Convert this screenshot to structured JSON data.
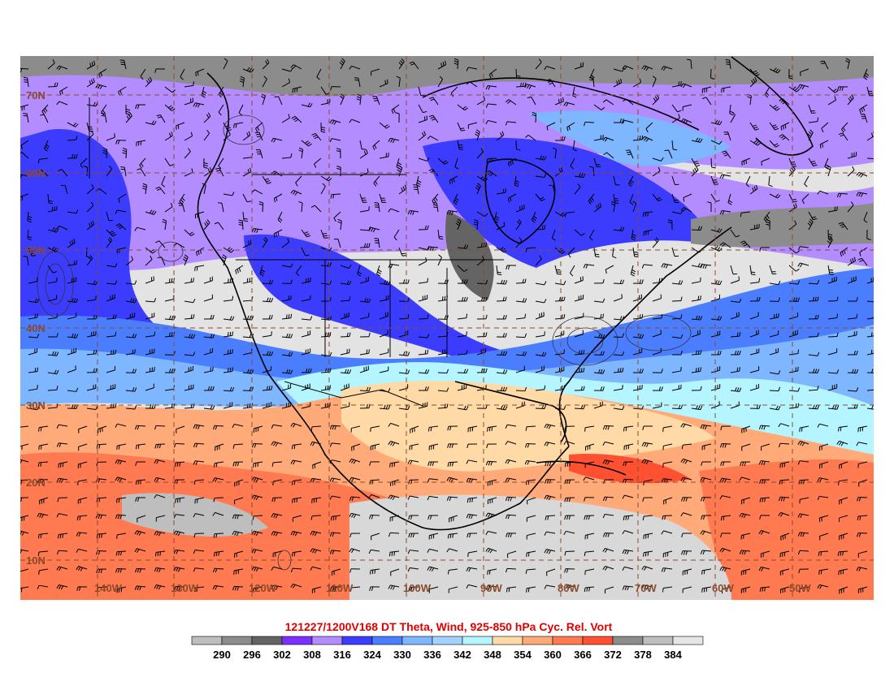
{
  "title": "121227/1200V168 DT Theta, Wind, 925-850 hPa Cyc. Rel. Vort",
  "colorbar": {
    "levels": [
      "290",
      "296",
      "302",
      "308",
      "316",
      "324",
      "330",
      "336",
      "342",
      "348",
      "354",
      "360",
      "366",
      "372",
      "378",
      "384"
    ],
    "colors": [
      "#bebebe",
      "#8c8c8c",
      "#646464",
      "#7d2fff",
      "#b38cff",
      "#3c3cff",
      "#4b7dff",
      "#7eb6ff",
      "#a6d2ff",
      "#b4f5ff",
      "#ffd9a6",
      "#ffaa78",
      "#ff7a50",
      "#ff5032",
      "#8c8c8c",
      "#bebebe",
      "#e6e6e6"
    ]
  },
  "lat_labels": [
    "70N",
    "60N",
    "50N",
    "40N",
    "30N",
    "20N",
    "10N"
  ],
  "lon_labels": [
    "140W",
    "130W",
    "120W",
    "110W",
    "100W",
    "90W",
    "80W",
    "70W",
    "60W",
    "50W"
  ],
  "colors": {
    "grid": "#8b4a2b",
    "title": "#e00000",
    "coastline": "#000000"
  }
}
